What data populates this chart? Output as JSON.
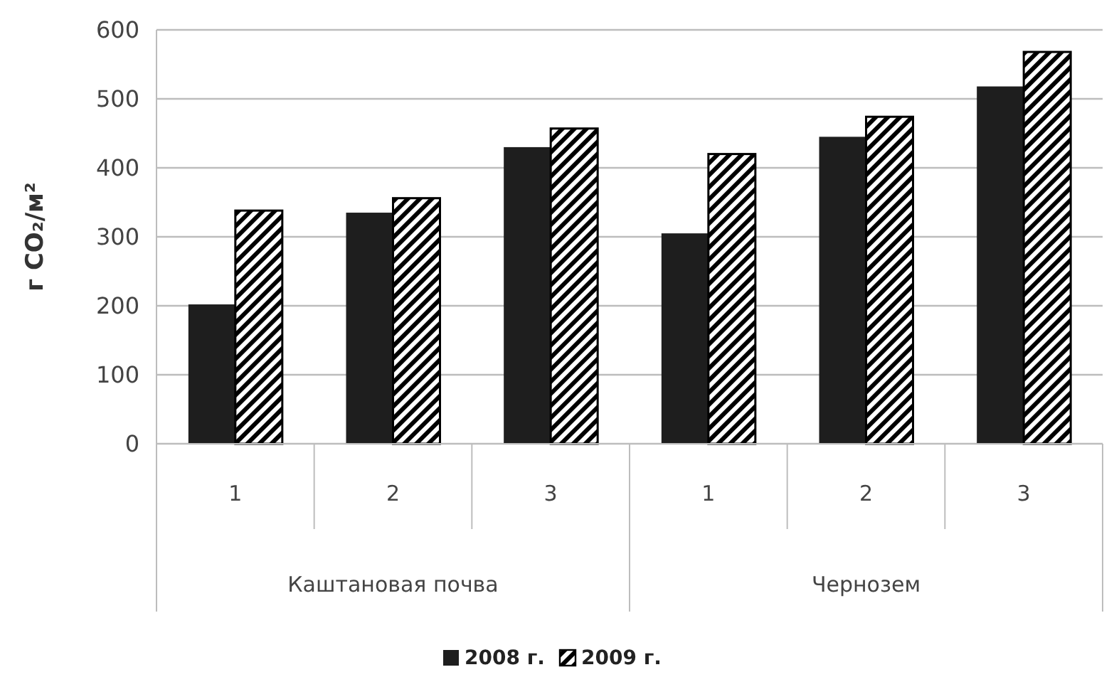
{
  "chart_data": {
    "type": "bar",
    "ylabel": "г CO₂/м²",
    "categories": [
      "1",
      "2",
      "3",
      "1",
      "2",
      "3"
    ],
    "annotations": [
      "Каштановая почва",
      "Чернозем"
    ],
    "series": [
      {
        "name": "2008 г.",
        "color": "#1e1e1e",
        "values": [
          202,
          335,
          430,
          305,
          445,
          518
        ]
      },
      {
        "name": "2009 г.",
        "color": "#000000",
        "values": [
          338,
          356,
          457,
          420,
          474,
          568
        ]
      }
    ],
    "ylim": [
      0,
      600
    ],
    "yticks": [
      0,
      100,
      200,
      300,
      400,
      500,
      600
    ],
    "grid": "y",
    "legend": "bottom"
  }
}
